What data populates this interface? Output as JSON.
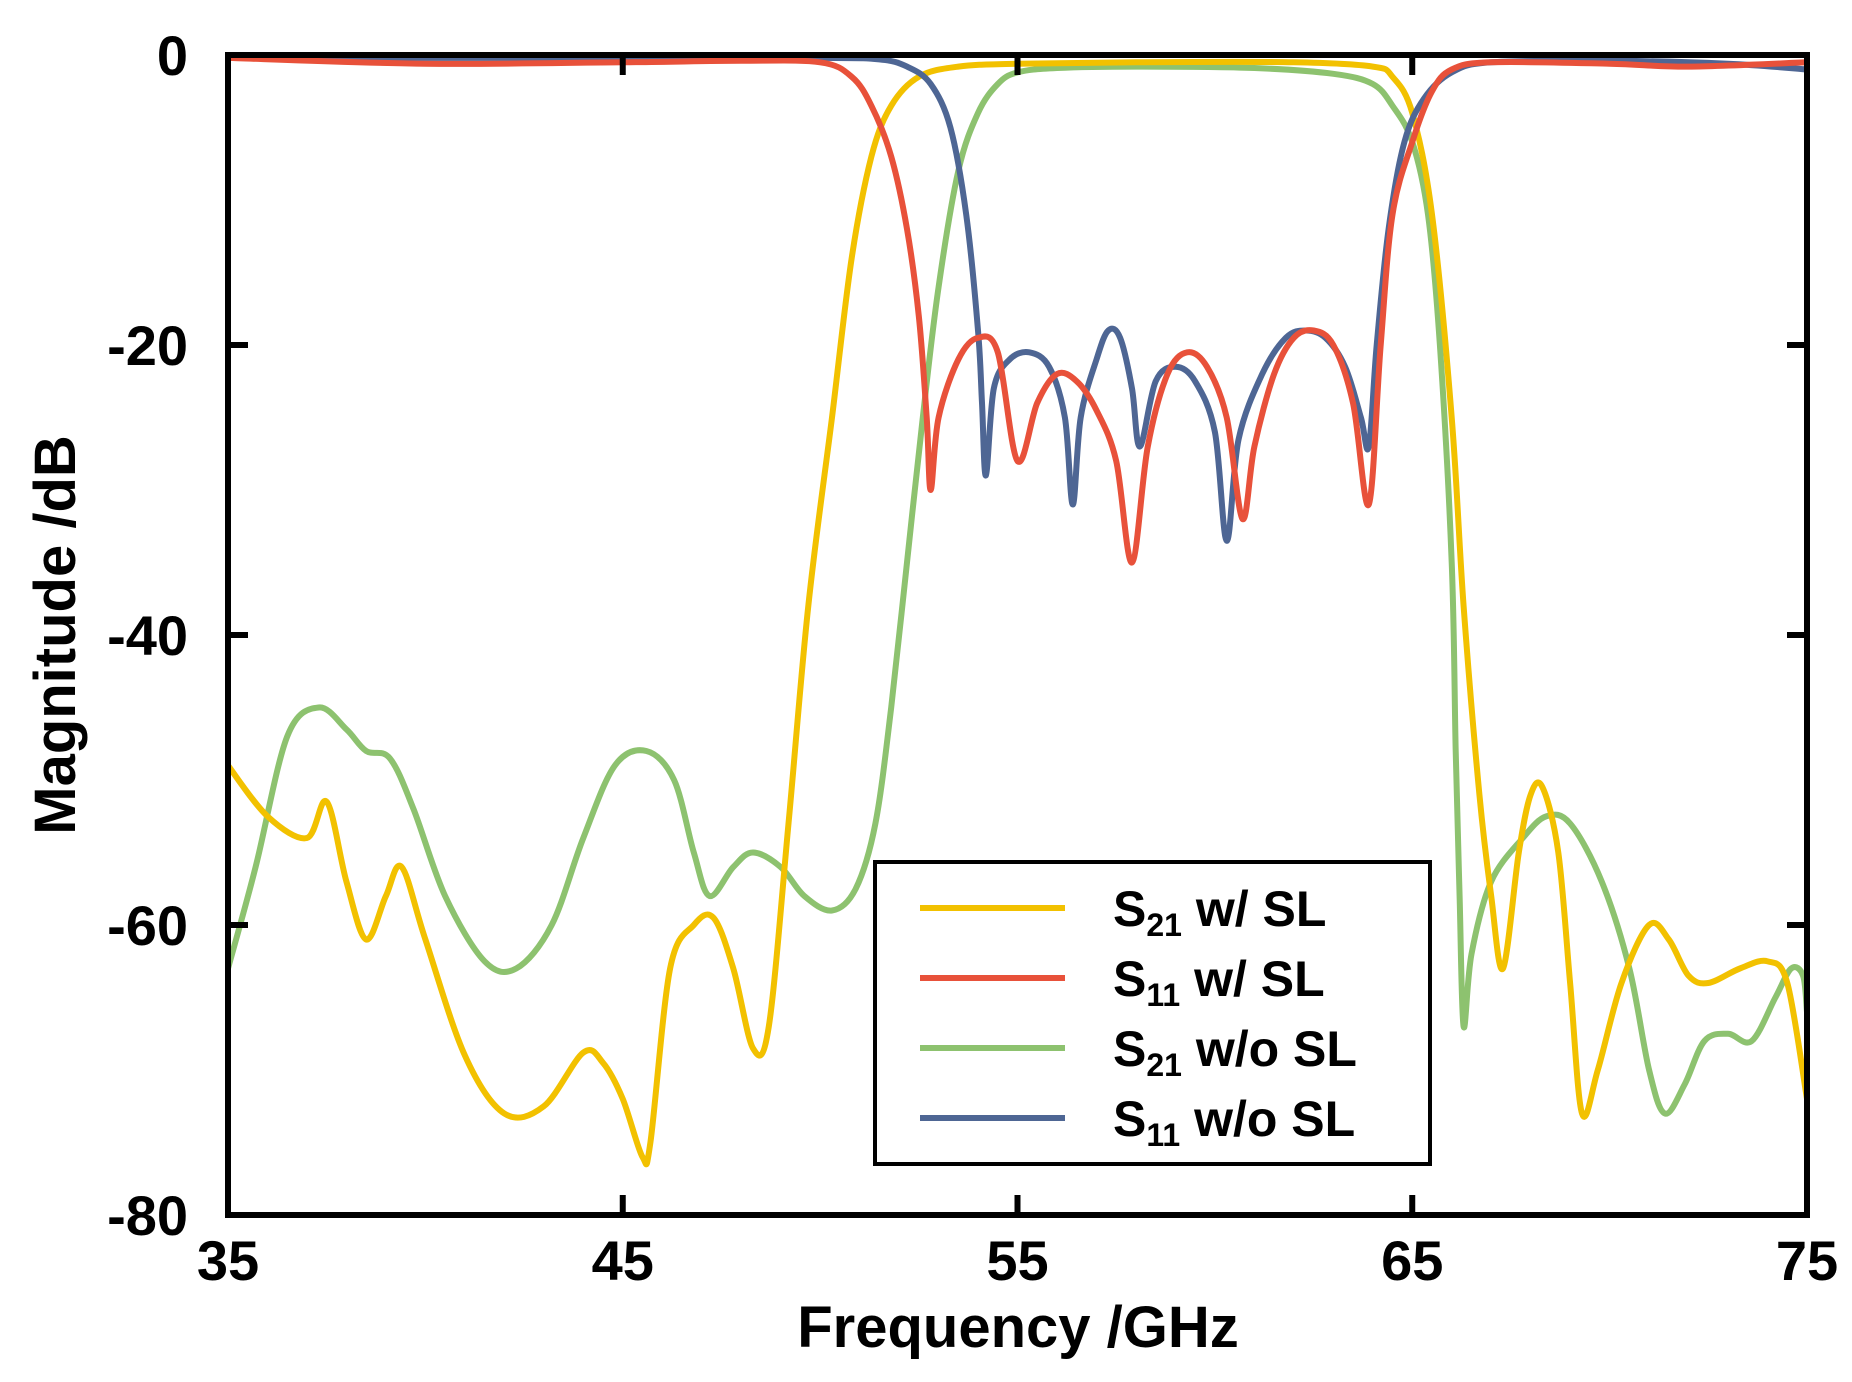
{
  "chart_data": {
    "type": "line",
    "title": "",
    "xlabel": "Frequency /GHz",
    "ylabel": "Magnitude /dB",
    "xlim": [
      35,
      75
    ],
    "ylim": [
      -80,
      0
    ],
    "xticks": [
      35,
      45,
      55,
      65,
      75
    ],
    "yticks": [
      0,
      -20,
      -40,
      -60,
      -80
    ],
    "x_tick_labels": [
      "35",
      "45",
      "55",
      "65",
      "75"
    ],
    "y_tick_labels": [
      "0",
      "-20",
      "-40",
      "-60",
      "-80"
    ],
    "grid": false,
    "legend_position": "bottom-center",
    "series": [
      {
        "name": "S21 w/ SL",
        "legend_main": "S",
        "legend_sub": "21",
        "legend_rest": " w/ SL",
        "color": "#f2c100",
        "points": [
          [
            35,
            -49
          ],
          [
            36,
            -52.5
          ],
          [
            37,
            -54
          ],
          [
            37.5,
            -51.5
          ],
          [
            38,
            -57
          ],
          [
            38.5,
            -61
          ],
          [
            39,
            -58
          ],
          [
            39.4,
            -56
          ],
          [
            40,
            -61
          ],
          [
            41,
            -69
          ],
          [
            42,
            -73
          ],
          [
            43,
            -72.5
          ],
          [
            44,
            -68.8
          ],
          [
            44.5,
            -69.5
          ],
          [
            45,
            -72
          ],
          [
            45.5,
            -76
          ],
          [
            45.7,
            -75
          ],
          [
            46.2,
            -63
          ],
          [
            46.8,
            -60
          ],
          [
            47.3,
            -59.5
          ],
          [
            47.8,
            -63
          ],
          [
            48.3,
            -68.5
          ],
          [
            48.7,
            -67
          ],
          [
            49.2,
            -53
          ],
          [
            49.7,
            -38
          ],
          [
            50.3,
            -25
          ],
          [
            50.8,
            -14
          ],
          [
            51.3,
            -7
          ],
          [
            51.8,
            -3.5
          ],
          [
            52.5,
            -1.5
          ],
          [
            53.5,
            -0.8
          ],
          [
            55,
            -0.6
          ],
          [
            58,
            -0.5
          ],
          [
            62,
            -0.5
          ],
          [
            64,
            -0.8
          ],
          [
            64.5,
            -1.5
          ],
          [
            65,
            -4
          ],
          [
            65.5,
            -11
          ],
          [
            66,
            -25
          ],
          [
            66.3,
            -38
          ],
          [
            66.7,
            -51
          ],
          [
            67,
            -58
          ],
          [
            67.3,
            -63
          ],
          [
            67.7,
            -55
          ],
          [
            68,
            -51
          ],
          [
            68.3,
            -50.5
          ],
          [
            68.7,
            -55
          ],
          [
            69,
            -64
          ],
          [
            69.3,
            -73
          ],
          [
            69.7,
            -70
          ],
          [
            70.3,
            -64
          ],
          [
            71,
            -60
          ],
          [
            71.5,
            -61
          ],
          [
            72,
            -63.5
          ],
          [
            72.5,
            -64
          ],
          [
            73.3,
            -63
          ],
          [
            74,
            -62.5
          ],
          [
            74.5,
            -64
          ],
          [
            75,
            -72
          ]
        ]
      },
      {
        "name": "S11 w/ SL",
        "legend_main": "S",
        "legend_sub": "11",
        "legend_rest": " w/ SL",
        "color": "#e8513a",
        "points": [
          [
            35,
            -0.2
          ],
          [
            40,
            -0.6
          ],
          [
            45,
            -0.5
          ],
          [
            48,
            -0.4
          ],
          [
            50,
            -0.5
          ],
          [
            50.8,
            -1.5
          ],
          [
            51.3,
            -3.5
          ],
          [
            51.8,
            -7
          ],
          [
            52.2,
            -12
          ],
          [
            52.5,
            -18
          ],
          [
            52.7,
            -25
          ],
          [
            52.8,
            -30
          ],
          [
            53,
            -25
          ],
          [
            53.5,
            -21
          ],
          [
            54,
            -19.5
          ],
          [
            54.5,
            -20.5
          ],
          [
            55,
            -28
          ],
          [
            55.5,
            -24
          ],
          [
            56,
            -22
          ],
          [
            56.5,
            -22.5
          ],
          [
            57,
            -24.5
          ],
          [
            57.5,
            -28
          ],
          [
            57.9,
            -35
          ],
          [
            58.3,
            -27
          ],
          [
            58.8,
            -22
          ],
          [
            59.3,
            -20.5
          ],
          [
            59.8,
            -21.5
          ],
          [
            60.3,
            -25
          ],
          [
            60.7,
            -32
          ],
          [
            61,
            -27
          ],
          [
            61.5,
            -22
          ],
          [
            62,
            -19.5
          ],
          [
            62.5,
            -19
          ],
          [
            63,
            -20
          ],
          [
            63.5,
            -24
          ],
          [
            63.9,
            -31
          ],
          [
            64.2,
            -20
          ],
          [
            64.5,
            -11
          ],
          [
            65,
            -6
          ],
          [
            65.5,
            -2.5
          ],
          [
            66,
            -1
          ],
          [
            67,
            -0.5
          ],
          [
            70,
            -0.6
          ],
          [
            72,
            -0.8
          ],
          [
            75,
            -0.5
          ]
        ]
      },
      {
        "name": "S21 w/o SL",
        "legend_main": "S",
        "legend_sub": "21",
        "legend_rest": " w/o SL",
        "color": "#8dc26f",
        "points": [
          [
            35,
            -63
          ],
          [
            35.7,
            -56
          ],
          [
            36.5,
            -47
          ],
          [
            37.3,
            -45
          ],
          [
            38,
            -46.5
          ],
          [
            38.5,
            -48
          ],
          [
            39.1,
            -48.5
          ],
          [
            39.7,
            -52
          ],
          [
            40.5,
            -58
          ],
          [
            41.5,
            -62.5
          ],
          [
            42.3,
            -63
          ],
          [
            43.2,
            -60
          ],
          [
            44,
            -54
          ],
          [
            44.8,
            -49
          ],
          [
            45.6,
            -48
          ],
          [
            46.3,
            -50
          ],
          [
            46.8,
            -55
          ],
          [
            47.2,
            -58
          ],
          [
            47.8,
            -56
          ],
          [
            48.3,
            -55
          ],
          [
            49,
            -56
          ],
          [
            49.6,
            -58
          ],
          [
            50.3,
            -59
          ],
          [
            50.9,
            -57.5
          ],
          [
            51.4,
            -53
          ],
          [
            51.8,
            -45
          ],
          [
            52.2,
            -35
          ],
          [
            52.6,
            -25
          ],
          [
            53,
            -16
          ],
          [
            53.5,
            -8
          ],
          [
            54,
            -4
          ],
          [
            54.5,
            -2
          ],
          [
            55,
            -1.2
          ],
          [
            56,
            -0.9
          ],
          [
            58,
            -0.8
          ],
          [
            61,
            -0.9
          ],
          [
            63,
            -1.3
          ],
          [
            64,
            -2
          ],
          [
            64.5,
            -3.5
          ],
          [
            65,
            -6
          ],
          [
            65.4,
            -11
          ],
          [
            65.7,
            -20
          ],
          [
            66,
            -35
          ],
          [
            66.1,
            -48
          ],
          [
            66.2,
            -58
          ],
          [
            66.3,
            -67
          ],
          [
            66.5,
            -62
          ],
          [
            67,
            -57
          ],
          [
            67.8,
            -54
          ],
          [
            68.4,
            -52.5
          ],
          [
            69,
            -53
          ],
          [
            69.8,
            -57
          ],
          [
            70.5,
            -63
          ],
          [
            71,
            -70
          ],
          [
            71.4,
            -73
          ],
          [
            71.9,
            -71
          ],
          [
            72.4,
            -68
          ],
          [
            73,
            -67.5
          ],
          [
            73.6,
            -68
          ],
          [
            74.2,
            -65
          ],
          [
            74.6,
            -63
          ],
          [
            74.9,
            -63.5
          ],
          [
            75,
            -66
          ]
        ]
      },
      {
        "name": "S11 w/o SL",
        "legend_main": "S",
        "legend_sub": "11",
        "legend_rest": " w/o SL",
        "color": "#4e6694",
        "points": [
          [
            35,
            -0.2
          ],
          [
            45,
            -0.2
          ],
          [
            50,
            -0.2
          ],
          [
            51.5,
            -0.3
          ],
          [
            52.2,
            -0.8
          ],
          [
            52.8,
            -2
          ],
          [
            53.3,
            -5
          ],
          [
            53.7,
            -11
          ],
          [
            54,
            -19
          ],
          [
            54.1,
            -24
          ],
          [
            54.2,
            -29
          ],
          [
            54.4,
            -23
          ],
          [
            54.8,
            -21
          ],
          [
            55.3,
            -20.5
          ],
          [
            55.8,
            -21.5
          ],
          [
            56.2,
            -25
          ],
          [
            56.4,
            -31
          ],
          [
            56.6,
            -25
          ],
          [
            57,
            -21
          ],
          [
            57.3,
            -19
          ],
          [
            57.6,
            -19.5
          ],
          [
            57.9,
            -23
          ],
          [
            58.1,
            -27
          ],
          [
            58.5,
            -22.5
          ],
          [
            59,
            -21.5
          ],
          [
            59.5,
            -22.5
          ],
          [
            60,
            -26
          ],
          [
            60.3,
            -33.5
          ],
          [
            60.6,
            -26.5
          ],
          [
            61.2,
            -22
          ],
          [
            61.8,
            -19.5
          ],
          [
            62.3,
            -19
          ],
          [
            62.8,
            -19.5
          ],
          [
            63.3,
            -21.5
          ],
          [
            63.7,
            -25
          ],
          [
            63.9,
            -27
          ],
          [
            64.1,
            -20
          ],
          [
            64.4,
            -12
          ],
          [
            64.8,
            -6
          ],
          [
            65.3,
            -3
          ],
          [
            66,
            -1.2
          ],
          [
            67,
            -0.5
          ],
          [
            70,
            -0.4
          ],
          [
            73,
            -0.6
          ],
          [
            75,
            -1
          ]
        ]
      }
    ]
  }
}
